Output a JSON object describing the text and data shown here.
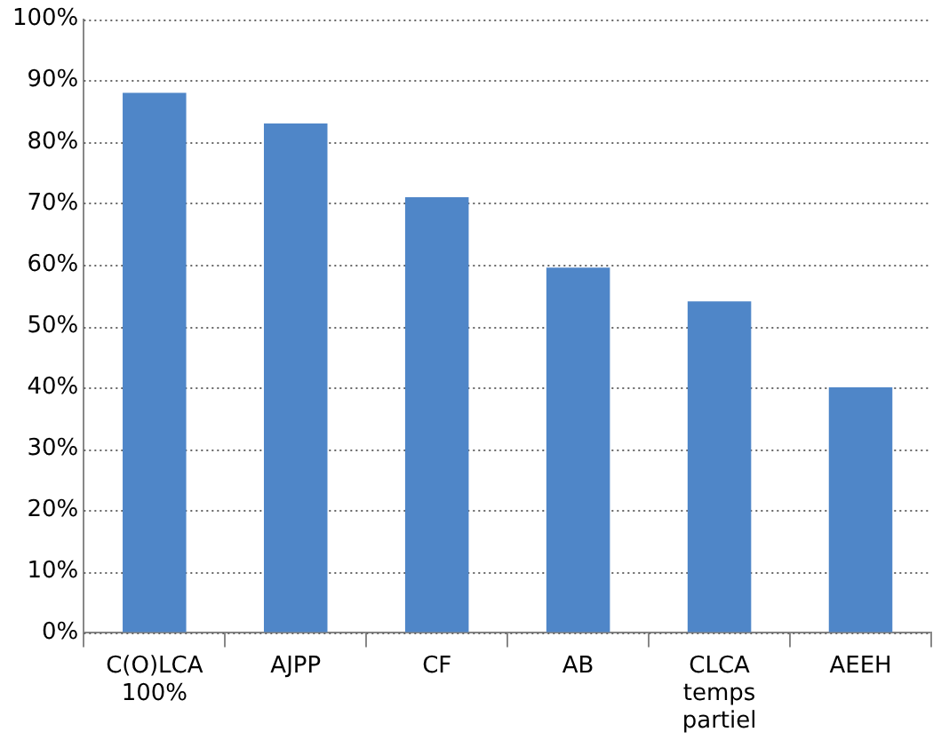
{
  "chart_data": {
    "type": "bar",
    "categories": [
      "C(O)LCA 100%",
      "AJPP",
      "CF",
      "AB",
      "CLCA temps partiel",
      "AEEH"
    ],
    "values": [
      88,
      83,
      71,
      59.5,
      54,
      40
    ],
    "color": "#4f86c8",
    "ylim": [
      0,
      100
    ],
    "yticks": [
      {
        "value": 0,
        "label": "0%"
      },
      {
        "value": 10,
        "label": "10%"
      },
      {
        "value": 20,
        "label": "20%"
      },
      {
        "value": 30,
        "label": "30%"
      },
      {
        "value": 40,
        "label": "40%"
      },
      {
        "value": 50,
        "label": "50%"
      },
      {
        "value": 60,
        "label": "60%"
      },
      {
        "value": 70,
        "label": "70%"
      },
      {
        "value": 80,
        "label": "80%"
      },
      {
        "value": 90,
        "label": "90%"
      },
      {
        "value": 100,
        "label": "100%"
      }
    ],
    "grid": "y",
    "legend": false
  }
}
